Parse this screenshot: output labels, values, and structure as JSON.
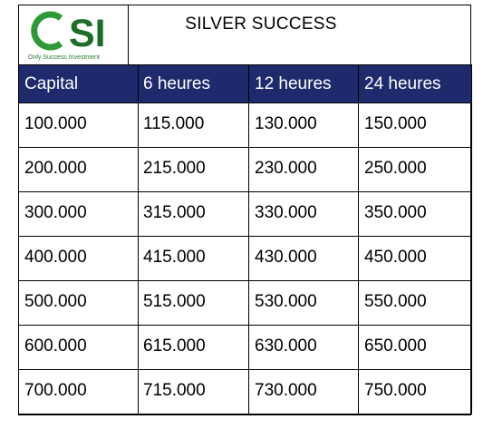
{
  "logo": {
    "letters": "CSI",
    "tagline": "Only Success Investment"
  },
  "title": "SILVER SUCCESS",
  "table": {
    "headers": [
      "Capital",
      "6 heures",
      "12 heures",
      "24 heures"
    ],
    "rows": [
      [
        "100.000",
        "115.000",
        "130.000",
        "150.000"
      ],
      [
        "200.000",
        "215.000",
        "230.000",
        "250.000"
      ],
      [
        "300.000",
        "315.000",
        "330.000",
        "350.000"
      ],
      [
        "400.000",
        "415.000",
        "430.000",
        "450.000"
      ],
      [
        "500.000",
        "515.000",
        "530.000",
        "550.000"
      ],
      [
        "600.000",
        "615.000",
        "630.000",
        "650.000"
      ],
      [
        "700.000",
        "715.000",
        "730.000",
        "750.000"
      ]
    ]
  },
  "colors": {
    "header_bg": "#1f2a6d",
    "header_text": "#ffffff",
    "logo_green": "#2e9a36",
    "logo_dark_green": "#1b6e2a"
  }
}
